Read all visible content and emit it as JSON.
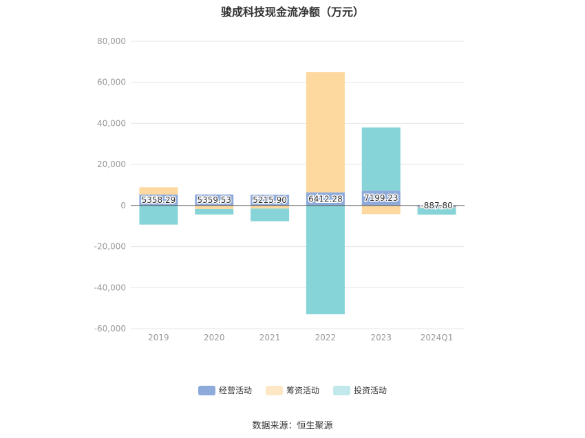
{
  "title": "骏成科技现金流净额（万元）",
  "source": "数据来源：恒生聚源",
  "chart_data": {
    "type": "bar",
    "stacked": true,
    "categories": [
      "2019",
      "2020",
      "2021",
      "2022",
      "2023",
      "2024Q1"
    ],
    "ylim": [
      -60000,
      80000
    ],
    "yticks": [
      80000,
      60000,
      40000,
      20000,
      0,
      -20000,
      -40000,
      -60000
    ],
    "ytick_labels": [
      "80,000",
      "60,000",
      "40,000",
      "20,000",
      "0",
      "-20,000",
      "-40,000",
      "-60,000"
    ],
    "grid": true,
    "legend_position": "bottom",
    "series": [
      {
        "name": "经营活动",
        "color": "#8eaadb",
        "values": [
          5358.29,
          5359.53,
          5215.9,
          6412.28,
          7199.23,
          -887.8
        ],
        "labels": [
          "5358.29",
          "5359.53",
          "5215.90",
          "6412.28",
          "7199.23",
          "-887.80"
        ]
      },
      {
        "name": "筹资活动",
        "color": "#fdd9a0",
        "values": [
          3500,
          -1700,
          -1500,
          58500,
          -4200,
          -300
        ]
      },
      {
        "name": "投资活动",
        "color": "#87d4d8",
        "values": [
          -9300,
          -2700,
          -6200,
          -53000,
          30800,
          -3300
        ]
      }
    ]
  }
}
